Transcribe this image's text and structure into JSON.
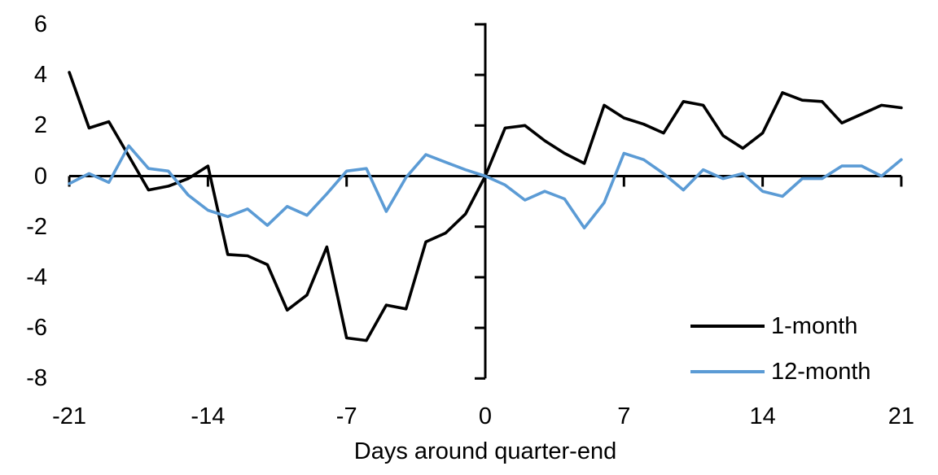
{
  "chart_data": {
    "type": "line",
    "title": "",
    "xlabel": "Days around quarter-end",
    "ylabel": "",
    "xlim": [
      -21,
      21
    ],
    "ylim": [
      -8,
      6
    ],
    "x_ticks": [
      -21,
      -14,
      -7,
      0,
      7,
      14,
      21
    ],
    "y_ticks": [
      6,
      4,
      2,
      0,
      -2,
      -4,
      -6,
      -8
    ],
    "grid": false,
    "legend_position": "inside-bottom-right",
    "axis_color": "#000000",
    "x": [
      -21,
      -20,
      -19,
      -18,
      -17,
      -16,
      -15,
      -14,
      -13,
      -12,
      -11,
      -10,
      -9,
      -8,
      -7,
      -6,
      -5,
      -4,
      -3,
      -2,
      -1,
      0,
      1,
      2,
      3,
      4,
      5,
      6,
      7,
      8,
      9,
      10,
      11,
      12,
      13,
      14,
      15,
      16,
      17,
      18,
      19,
      20,
      21
    ],
    "series": [
      {
        "name": "1-month",
        "color": "#000000",
        "values": [
          4.1,
          1.9,
          2.15,
          0.8,
          -0.55,
          -0.4,
          -0.1,
          0.4,
          -3.1,
          -3.15,
          -3.5,
          -5.3,
          -4.7,
          -2.8,
          -6.4,
          -6.5,
          -5.1,
          -5.25,
          -2.6,
          -2.25,
          -1.5,
          0.0,
          1.9,
          2.0,
          1.4,
          0.9,
          0.5,
          2.8,
          2.3,
          2.05,
          1.7,
          2.95,
          2.8,
          1.6,
          1.1,
          1.7,
          3.3,
          3.0,
          2.95,
          2.1,
          2.45,
          2.8,
          2.7
        ]
      },
      {
        "name": "12-month",
        "color": "#5B9BD5",
        "values": [
          -0.3,
          0.1,
          -0.25,
          1.2,
          0.3,
          0.2,
          -0.75,
          -1.35,
          -1.6,
          -1.3,
          -1.95,
          -1.2,
          -1.55,
          -0.7,
          0.2,
          0.3,
          -1.4,
          -0.05,
          0.85,
          0.55,
          0.25,
          0.0,
          -0.35,
          -0.95,
          -0.6,
          -0.9,
          -2.05,
          -1.05,
          0.9,
          0.65,
          0.1,
          -0.55,
          0.25,
          -0.1,
          0.1,
          -0.6,
          -0.8,
          -0.1,
          -0.1,
          0.4,
          0.4,
          0.0,
          0.65
        ]
      }
    ]
  }
}
